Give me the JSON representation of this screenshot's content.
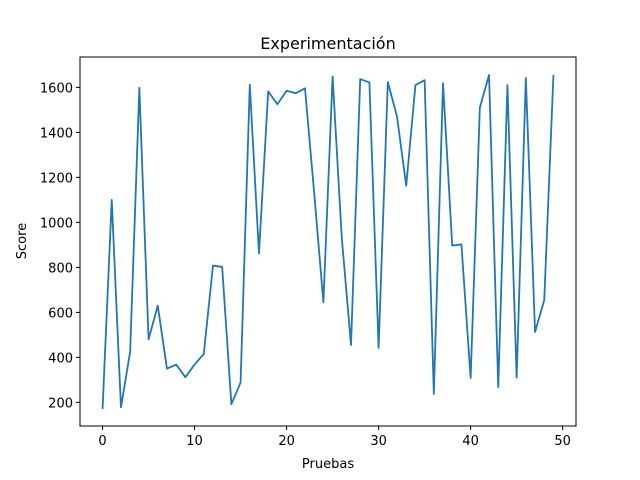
{
  "chart_data": {
    "type": "line",
    "title": "Experimentación",
    "xlabel": "Pruebas",
    "ylabel": "Score",
    "xlim": [
      -2.45,
      51.45
    ],
    "ylim": [
      95,
      1735
    ],
    "xticks": [
      0,
      10,
      20,
      30,
      40,
      50
    ],
    "yticks": [
      200,
      400,
      600,
      800,
      1000,
      1200,
      1400,
      1600
    ],
    "grid": false,
    "line_color": "#1f77b4",
    "series": [
      {
        "x": [
          0,
          1,
          2,
          3,
          4,
          5,
          6,
          7,
          8,
          9,
          10,
          11,
          12,
          13,
          14,
          15,
          16,
          17,
          18,
          19,
          20,
          21,
          22,
          23,
          24,
          25,
          26,
          27,
          28,
          29,
          30,
          31,
          32,
          33,
          34,
          35,
          36,
          37,
          38,
          39,
          40,
          41,
          42,
          43,
          44,
          45,
          46,
          47,
          48,
          49
        ],
        "values": [
          170,
          1100,
          178,
          425,
          1598,
          480,
          630,
          350,
          368,
          312,
          368,
          415,
          808,
          802,
          192,
          288,
          1612,
          862,
          1582,
          1525,
          1585,
          1574,
          1596,
          1130,
          645,
          1648,
          930,
          455,
          1637,
          1622,
          442,
          1624,
          1470,
          1163,
          1610,
          1632,
          238,
          1618,
          897,
          902,
          308,
          1510,
          1655,
          268,
          1610,
          310,
          1642,
          513,
          655,
          1656
        ]
      }
    ]
  }
}
